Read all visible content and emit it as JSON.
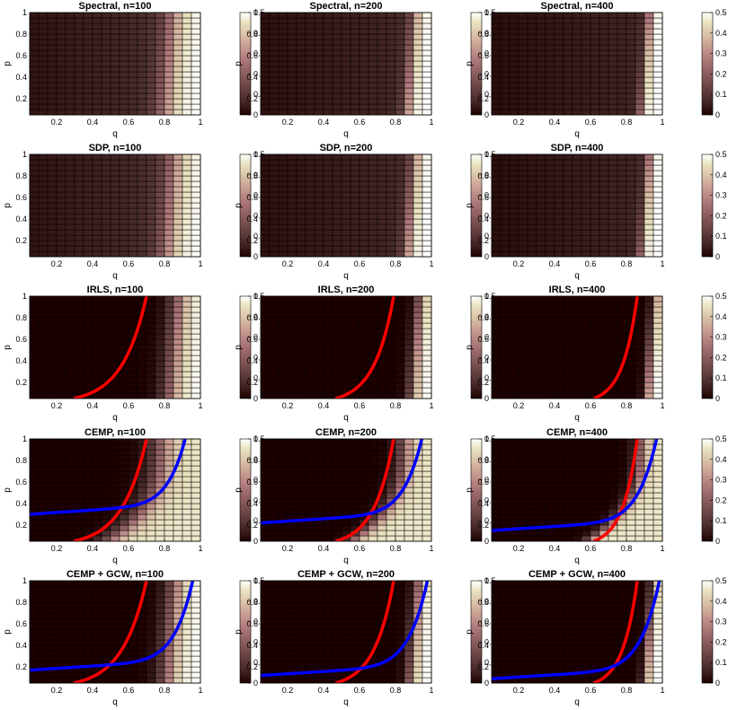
{
  "chart_data": {
    "type": "heatmap",
    "layout": {
      "rows": 5,
      "cols": 3
    },
    "xlabel": "q",
    "ylabel": "p",
    "x_range": [
      0.05,
      1.0
    ],
    "y_range": [
      0.05,
      1.0
    ],
    "x_ticks": [
      "0.2",
      "0.4",
      "0.6",
      "0.8",
      "1"
    ],
    "y_ticks": [
      "0.2",
      "0.4",
      "0.6",
      "0.8",
      "1"
    ],
    "grid_cells": [
      19,
      19
    ],
    "colorbar": {
      "range": [
        0,
        0.5
      ],
      "ticks": [
        "0",
        "0.1",
        "0.2",
        "0.3",
        "0.4",
        "0.5"
      ]
    },
    "colormap": "pink",
    "series_colors": {
      "red_curve": "#ff0000",
      "blue_curve": "#0000ff"
    },
    "panels": [
      {
        "title": "Spectral, n=100",
        "q_trans": 0.85,
        "width": 0.2,
        "base": 0.03,
        "slope": 0.06,
        "mode": "soft",
        "red": null,
        "blue": null
      },
      {
        "title": "Spectral, n=200",
        "q_trans": 0.91,
        "width": 0.1,
        "base": 0.025,
        "slope": 0.05,
        "mode": "soft",
        "red": null,
        "blue": null
      },
      {
        "title": "Spectral, n=400",
        "q_trans": 0.93,
        "width": 0.07,
        "base": 0.02,
        "slope": 0.05,
        "mode": "soft",
        "red": null,
        "blue": null
      },
      {
        "title": "SDP, n=100",
        "q_trans": 0.86,
        "width": 0.2,
        "base": 0.03,
        "slope": 0.06,
        "mode": "soft",
        "red": null,
        "blue": null
      },
      {
        "title": "SDP, n=200",
        "q_trans": 0.91,
        "width": 0.1,
        "base": 0.025,
        "slope": 0.05,
        "mode": "soft",
        "red": null,
        "blue": null
      },
      {
        "title": "SDP, n=400",
        "q_trans": 0.93,
        "width": 0.07,
        "base": 0.02,
        "slope": 0.05,
        "mode": "soft",
        "red": null,
        "blue": null
      },
      {
        "title": "IRLS, n=100",
        "q_trans": 0.88,
        "width": 0.18,
        "base": 0.0,
        "slope": 0.0,
        "mode": "sharp",
        "red": {
          "q_at_p1": 0.7,
          "shape": 0.15
        },
        "blue": null
      },
      {
        "title": "IRLS, n=200",
        "q_trans": 0.94,
        "width": 0.1,
        "base": 0.0,
        "slope": 0.0,
        "mode": "sharp",
        "red": {
          "q_at_p1": 0.79,
          "shape": 0.12
        },
        "blue": null
      },
      {
        "title": "IRLS, n=400",
        "q_trans": 0.96,
        "width": 0.07,
        "base": 0.0,
        "slope": 0.0,
        "mode": "sharp",
        "red": {
          "q_at_p1": 0.86,
          "shape": 0.09
        },
        "blue": null
      },
      {
        "title": "CEMP, n=100",
        "q_trans": 0.78,
        "width": 0.22,
        "base": 0.0,
        "slope": 0.0,
        "mode": "cemp",
        "red": {
          "q_at_p1": 0.7,
          "shape": 0.15
        },
        "blue": {
          "q_at_p1": 0.93,
          "p0": 0.3
        }
      },
      {
        "title": "CEMP, n=200",
        "q_trans": 0.85,
        "width": 0.15,
        "base": 0.0,
        "slope": 0.0,
        "mode": "cemp",
        "red": {
          "q_at_p1": 0.79,
          "shape": 0.12
        },
        "blue": {
          "q_at_p1": 0.96,
          "p0": 0.22
        }
      },
      {
        "title": "CEMP, n=400",
        "q_trans": 0.88,
        "width": 0.12,
        "base": 0.0,
        "slope": 0.0,
        "mode": "cemp",
        "red": {
          "q_at_p1": 0.86,
          "shape": 0.09
        },
        "blue": {
          "q_at_p1": 0.98,
          "p0": 0.15
        }
      },
      {
        "title": "CEMP + GCW, n=100",
        "q_trans": 0.86,
        "width": 0.18,
        "base": 0.0,
        "slope": 0.0,
        "mode": "sharp",
        "red": {
          "q_at_p1": 0.7,
          "shape": 0.15
        },
        "blue": {
          "q_at_p1": 0.97,
          "p0": 0.17
        }
      },
      {
        "title": "CEMP + GCW, n=200",
        "q_trans": 0.93,
        "width": 0.1,
        "base": 0.0,
        "slope": 0.0,
        "mode": "sharp",
        "red": {
          "q_at_p1": 0.79,
          "shape": 0.12
        },
        "blue": {
          "q_at_p1": 0.99,
          "p0": 0.12
        }
      },
      {
        "title": "CEMP + GCW, n=400",
        "q_trans": 0.95,
        "width": 0.07,
        "base": 0.0,
        "slope": 0.0,
        "mode": "sharp",
        "red": {
          "q_at_p1": 0.86,
          "shape": 0.09
        },
        "blue": {
          "q_at_p1": 0.995,
          "p0": 0.09
        }
      }
    ]
  }
}
